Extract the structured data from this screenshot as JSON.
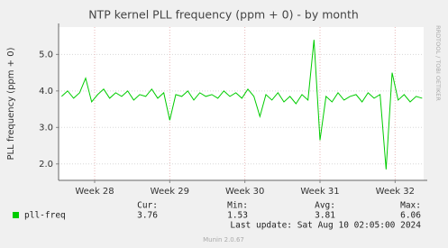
{
  "chart_data": {
    "type": "line",
    "title": "NTP kernel PLL frequency (ppm + 0) - by month",
    "y_label": "PLL frequency (ppm + 0)",
    "watermark": "RRDTOOL / TOBI OETIKER",
    "xlim": [
      27.52,
      32.38
    ],
    "xticks": [
      {
        "value": 28,
        "label": "Week 28"
      },
      {
        "value": 29,
        "label": "Week 29"
      },
      {
        "value": 30,
        "label": "Week 30"
      },
      {
        "value": 31,
        "label": "Week 31"
      },
      {
        "value": 32,
        "label": "Week 32"
      }
    ],
    "ylim": [
      1.55,
      5.75
    ],
    "yticks": [
      {
        "value": 2,
        "label": "2.0"
      },
      {
        "value": 3,
        "label": "3.0"
      },
      {
        "value": 4,
        "label": "4.0"
      },
      {
        "value": 5,
        "label": "5.0"
      }
    ],
    "grid": true,
    "x": [
      27.56,
      27.64,
      27.72,
      27.8,
      27.88,
      27.96,
      28.04,
      28.12,
      28.2,
      28.28,
      28.36,
      28.44,
      28.52,
      28.6,
      28.68,
      28.76,
      28.84,
      28.92,
      29.0,
      29.08,
      29.16,
      29.24,
      29.32,
      29.4,
      29.48,
      29.56,
      29.64,
      29.72,
      29.8,
      29.88,
      29.96,
      30.04,
      30.12,
      30.2,
      30.28,
      30.36,
      30.44,
      30.52,
      30.6,
      30.68,
      30.76,
      30.84,
      30.92,
      31.0,
      31.08,
      31.16,
      31.24,
      31.32,
      31.4,
      31.48,
      31.56,
      31.64,
      31.72,
      31.8,
      31.88,
      31.96,
      32.04,
      32.12,
      32.2,
      32.28,
      32.36
    ],
    "series": [
      {
        "name": "pll-freq",
        "color": "#00cc00",
        "values": [
          3.85,
          4.0,
          3.8,
          3.95,
          4.35,
          3.7,
          3.9,
          4.05,
          3.8,
          3.95,
          3.85,
          4.0,
          3.75,
          3.9,
          3.85,
          4.05,
          3.8,
          3.95,
          3.2,
          3.9,
          3.85,
          4.0,
          3.75,
          3.95,
          3.85,
          3.9,
          3.8,
          4.0,
          3.85,
          3.95,
          3.8,
          4.05,
          3.85,
          3.3,
          3.9,
          3.75,
          3.95,
          3.7,
          3.85,
          3.65,
          3.9,
          3.75,
          5.4,
          2.65,
          3.85,
          3.7,
          3.95,
          3.75,
          3.85,
          3.9,
          3.7,
          3.95,
          3.8,
          3.9,
          1.85,
          4.5,
          3.75,
          3.9,
          3.7,
          3.85,
          3.8
        ]
      }
    ],
    "legend_stats": {
      "labels": [
        "Cur:",
        "Min:",
        "Avg:",
        "Max:"
      ],
      "values": [
        3.76,
        1.53,
        3.81,
        6.06
      ]
    },
    "last_update": "Last update: Sat Aug 10 02:05:00 2024",
    "footer": "Munin 2.0.67"
  }
}
